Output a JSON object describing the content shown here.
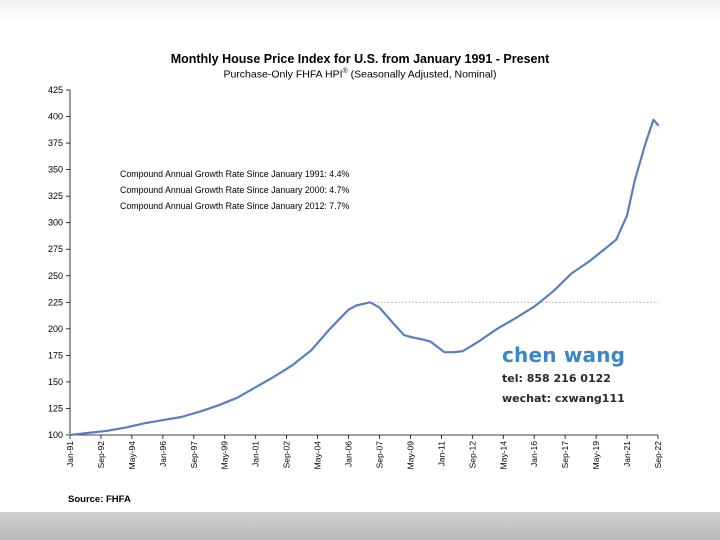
{
  "chart_data": {
    "type": "line",
    "title": "Monthly House Price Index for U.S. from January 1991 - Present",
    "subtitle": "Purchase-Only FHFA HPI",
    "subtitle_mark": "®",
    "subtitle_suffix": " (Seasonally Adjusted, Nominal)",
    "xlabel": "",
    "ylabel": "",
    "ylim": [
      100,
      425
    ],
    "y_ticks": [
      "100",
      "125",
      "150",
      "175",
      "200",
      "225",
      "250",
      "275",
      "300",
      "325",
      "350",
      "375",
      "400",
      "425"
    ],
    "x_ticks": [
      "Jan-91",
      "Sep-92",
      "May-94",
      "Jan-96",
      "Sep-97",
      "May-99",
      "Jan-01",
      "Sep-02",
      "May-04",
      "Jan-06",
      "Sep-07",
      "May-09",
      "Jan-11",
      "Sep-12",
      "May-14",
      "Jan-16",
      "Sep-17",
      "May-19",
      "Jan-21",
      "Sep-22"
    ],
    "x_range": [
      "1991-01",
      "2022-09"
    ],
    "grid": false,
    "reference_line": {
      "y": 225,
      "from": "2007-03",
      "to": "2022-09",
      "style": "dotted"
    },
    "series": [
      {
        "color": "#5b7fbc",
        "points": [
          {
            "x": "1991-01",
            "y": 100
          },
          {
            "x": "1992-01",
            "y": 102
          },
          {
            "x": "1993-01",
            "y": 104
          },
          {
            "x": "1994-01",
            "y": 107
          },
          {
            "x": "1995-01",
            "y": 111
          },
          {
            "x": "1996-01",
            "y": 114
          },
          {
            "x": "1997-01",
            "y": 117
          },
          {
            "x": "1998-01",
            "y": 122
          },
          {
            "x": "1999-01",
            "y": 128
          },
          {
            "x": "2000-01",
            "y": 135
          },
          {
            "x": "2001-01",
            "y": 145
          },
          {
            "x": "2002-01",
            "y": 155
          },
          {
            "x": "2003-01",
            "y": 166
          },
          {
            "x": "2004-01",
            "y": 180
          },
          {
            "x": "2005-01",
            "y": 200
          },
          {
            "x": "2006-01",
            "y": 218
          },
          {
            "x": "2006-06",
            "y": 222
          },
          {
            "x": "2007-03",
            "y": 225
          },
          {
            "x": "2007-09",
            "y": 220
          },
          {
            "x": "2008-06",
            "y": 205
          },
          {
            "x": "2009-01",
            "y": 194
          },
          {
            "x": "2009-06",
            "y": 192
          },
          {
            "x": "2010-01",
            "y": 190
          },
          {
            "x": "2010-06",
            "y": 188
          },
          {
            "x": "2011-03",
            "y": 178
          },
          {
            "x": "2011-09",
            "y": 178
          },
          {
            "x": "2012-03",
            "y": 179
          },
          {
            "x": "2013-01",
            "y": 188
          },
          {
            "x": "2014-01",
            "y": 200
          },
          {
            "x": "2015-01",
            "y": 210
          },
          {
            "x": "2016-01",
            "y": 221
          },
          {
            "x": "2017-01",
            "y": 235
          },
          {
            "x": "2018-01",
            "y": 252
          },
          {
            "x": "2019-01",
            "y": 264
          },
          {
            "x": "2020-01",
            "y": 278
          },
          {
            "x": "2020-06",
            "y": 284
          },
          {
            "x": "2021-01",
            "y": 307
          },
          {
            "x": "2021-06",
            "y": 340
          },
          {
            "x": "2022-01",
            "y": 375
          },
          {
            "x": "2022-06",
            "y": 397
          },
          {
            "x": "2022-09",
            "y": 392
          }
        ]
      }
    ],
    "annotations": [
      "Compound Annual Growth Rate Since January 1991:  4.4%",
      "Compound Annual Growth Rate Since January 2000:  4.7%",
      "Compound Annual Growth Rate Since January 2012:  7.7%"
    ]
  },
  "source": "Source: FHFA",
  "contact": {
    "name": "chen wang",
    "tel": "tel: 858 216 0122",
    "wechat": "wechat: cxwang111"
  },
  "colors": {
    "line": "#5b7fbc",
    "contact_name": "#3a86c8",
    "reference_line": "#9a9a9a"
  }
}
